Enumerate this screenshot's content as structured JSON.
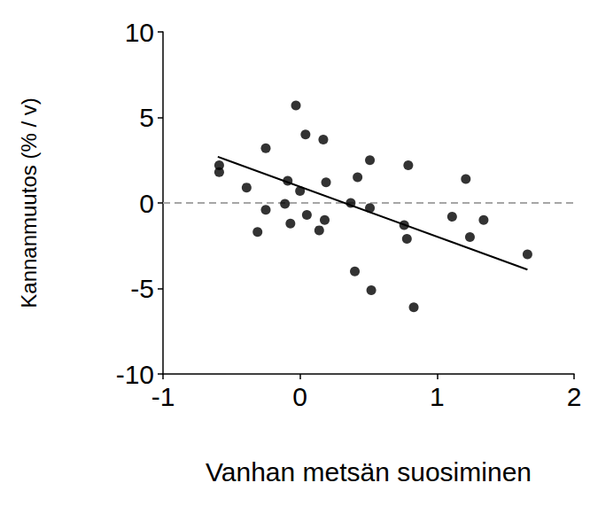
{
  "chart_data": {
    "type": "scatter",
    "x_label": "Vanhan metsän suosiminen",
    "y_label": "Kannanmuutos (% / v)",
    "color": "#000000",
    "marker": "circle",
    "x": [
      -0.59,
      -0.59,
      -0.39,
      -0.25,
      -0.25,
      -0.31,
      -0.09,
      -0.11,
      -0.07,
      -0.03,
      0.0,
      0.04,
      0.05,
      0.17,
      0.18,
      0.14,
      0.19,
      0.37,
      0.42,
      0.4,
      0.51,
      0.51,
      0.52,
      0.79,
      0.76,
      0.78,
      0.83,
      1.11,
      1.21,
      1.24,
      1.34,
      1.66
    ],
    "values": [
      2.2,
      1.8,
      0.9,
      3.2,
      -0.4,
      -1.7,
      1.3,
      -0.05,
      -1.2,
      5.7,
      0.7,
      4.0,
      -0.7,
      3.7,
      -1.0,
      -1.6,
      1.2,
      0.0,
      1.5,
      -4.0,
      -0.3,
      2.5,
      -5.1,
      2.2,
      -1.3,
      -2.1,
      -6.1,
      -0.8,
      1.4,
      -2.0,
      -1.0,
      -3.0
    ],
    "trend": {
      "x": [
        -0.6,
        1.66
      ],
      "values": [
        2.7,
        -3.9
      ],
      "color": "#000000",
      "line_style": "solid"
    },
    "reference_line": {
      "value": 0,
      "color": "#a6a6a6",
      "line_style": "dashed"
    },
    "xlim": [
      -1,
      2
    ],
    "xticks": [
      -1,
      0,
      1,
      2
    ],
    "ylim": [
      -10,
      10
    ],
    "yticks": [
      -10,
      -5,
      0,
      5,
      10
    ],
    "grid": false
  }
}
